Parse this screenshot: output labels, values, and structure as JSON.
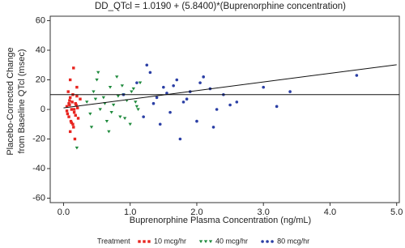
{
  "chart_data": {
    "type": "scatter",
    "title": "DD_QTcl = 1.0190 + (5.8400)*(Buprenorphine concentration)",
    "xlabel": "Buprenorphine Plasma Concentration (ng/mL)",
    "ylabel": [
      "Placebo-Corrected Change",
      "from Baseline QTcl (msec)"
    ],
    "legend_title": "Treatment",
    "xlim": [
      -0.2,
      5.04
    ],
    "ylim": [
      -63,
      63
    ],
    "xticks": [
      {
        "value": 0,
        "label": "0.0"
      },
      {
        "value": 1,
        "label": "1.0"
      },
      {
        "value": 2,
        "label": "2.0"
      },
      {
        "value": 3,
        "label": "3.0"
      },
      {
        "value": 4,
        "label": "4.0"
      },
      {
        "value": 5,
        "label": "5.0"
      }
    ],
    "yticks": [
      -60,
      -40,
      -20,
      0,
      20,
      40,
      60
    ],
    "reference_line": 10,
    "regression": {
      "intercept": 1.019,
      "slope": 5.84
    },
    "series": [
      {
        "name": "10 mcg/hr",
        "color": "#e8241f",
        "marker": "square",
        "x": [
          0.05,
          0.08,
          0.1,
          0.12,
          0.15,
          0.18,
          0.2,
          0.06,
          0.09,
          0.11,
          0.14,
          0.16,
          0.19,
          0.22,
          0.07,
          0.1,
          0.13,
          0.17,
          0.21,
          0.25,
          0.05,
          0.08,
          0.12,
          0.15,
          0.18,
          0.2,
          0.1,
          0.14,
          0.16,
          0.09
        ],
        "values": [
          2,
          -5,
          8,
          0,
          -12,
          4,
          15,
          -3,
          6,
          -8,
          10,
          -2,
          3,
          -6,
          12,
          -15,
          5,
          -20,
          1,
          7,
          -1,
          4,
          -9,
          28,
          -4,
          9,
          20,
          -10,
          0,
          3
        ]
      },
      {
        "name": "40 mcg/hr",
        "color": "#1e8a3c",
        "marker": "triangle",
        "x": [
          0.35,
          0.4,
          0.45,
          0.5,
          0.55,
          0.6,
          0.65,
          0.7,
          0.75,
          0.8,
          0.85,
          0.9,
          0.95,
          1.0,
          1.05,
          1.1,
          1.15,
          0.42,
          0.52,
          0.62,
          0.72,
          0.82,
          0.92,
          1.02,
          1.12,
          0.48,
          0.68,
          0.88,
          1.08,
          0.2
        ],
        "values": [
          5,
          -3,
          12,
          20,
          0,
          8,
          -8,
          15,
          3,
          22,
          -5,
          10,
          6,
          -10,
          14,
          2,
          18,
          -12,
          25,
          4,
          -2,
          9,
          -6,
          12,
          0,
          7,
          -15,
          16,
          5,
          -26
        ]
      },
      {
        "name": "80 mcg/hr",
        "color": "#2b3fa5",
        "marker": "circle",
        "x": [
          0.9,
          1.1,
          1.2,
          1.3,
          1.4,
          1.5,
          1.6,
          1.7,
          1.8,
          1.9,
          2.0,
          2.1,
          2.2,
          2.3,
          2.4,
          2.5,
          1.25,
          1.45,
          1.65,
          1.85,
          2.05,
          2.25,
          1.35,
          1.55,
          1.75,
          2.6,
          3.0,
          3.2,
          3.4,
          4.4
        ],
        "values": [
          10,
          18,
          -5,
          25,
          8,
          15,
          -2,
          20,
          5,
          12,
          -8,
          22,
          14,
          0,
          10,
          3,
          30,
          -10,
          16,
          7,
          18,
          -12,
          4,
          11,
          -20,
          5,
          15,
          2,
          12,
          23
        ]
      }
    ]
  }
}
